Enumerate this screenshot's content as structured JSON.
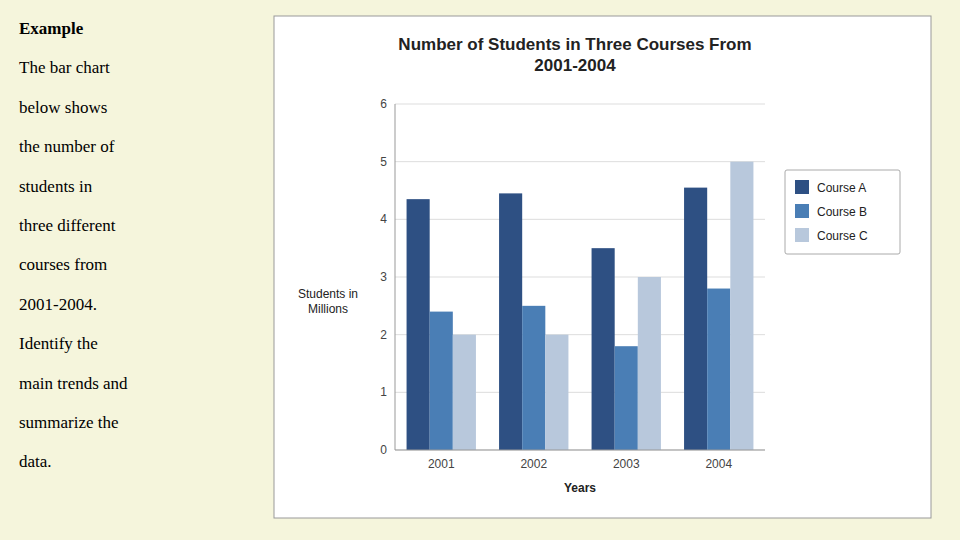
{
  "chart_data": {
    "type": "bar",
    "title": "Number of Students in Three Courses From\n2001-2004",
    "xlabel": "Years",
    "ylabel": "Students in\nMillions",
    "categories": [
      "2001",
      "2002",
      "2003",
      "2004"
    ],
    "series": [
      {
        "name": "Course A",
        "color": "#2E5083",
        "values": [
          4.35,
          4.45,
          3.5,
          4.55
        ]
      },
      {
        "name": "Course B",
        "color": "#4A7EB5",
        "values": [
          2.4,
          2.5,
          1.8,
          2.8
        ]
      },
      {
        "name": "Course C",
        "color": "#B8C8DC",
        "values": [
          2.0,
          2.0,
          3.0,
          5.0
        ]
      }
    ],
    "ylim": [
      0,
      6
    ],
    "yticks": [
      0,
      1,
      2,
      3,
      4,
      5,
      6
    ],
    "grid": true,
    "legend": "right",
    "annotations": [
      "Example",
      "The bar chart",
      "below shows",
      "the number of",
      "students in",
      "three different",
      "courses from",
      "2001-2004.",
      "Identify the",
      "main trends and",
      "summarize the",
      "data."
    ]
  }
}
